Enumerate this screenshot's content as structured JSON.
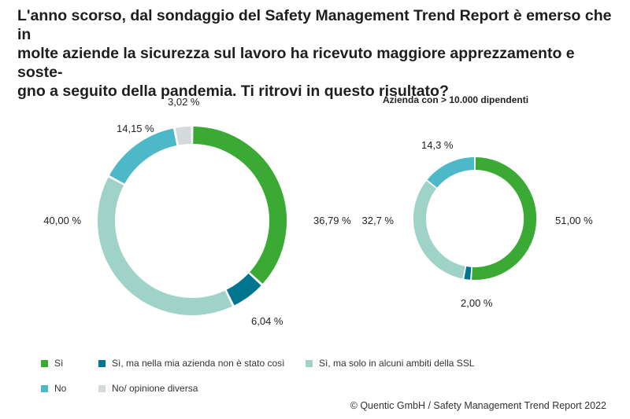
{
  "title": "L'anno scorso, dal sondaggio del Safety Management Trend Report è emerso che in molte aziende la sicurezza sul lavoro ha ricevuto maggiore apprezzamento e soste-gno a seguito della pandemia. Ti ritrovi in questo risultato?",
  "title_lines": [
    "L'anno scorso, dal sondaggio del Safety Management Trend Report è emerso che in",
    "molte aziende la sicurezza sul lavoro ha ricevuto maggiore apprezzamento e soste-",
    "gno a seguito della pandemia. Ti ritrovi in questo risultato?"
  ],
  "colors": {
    "si": "#3aaa35",
    "si_ma_non": "#00758f",
    "si_alcuni": "#9fd3c7",
    "no": "#4db8c8",
    "no_opinione": "#d4d9dc"
  },
  "chart_data": [
    {
      "type": "pie",
      "subtype": "donut",
      "title": "",
      "categories": [
        "Sì",
        "Sì, ma nella mia azienda non è stato così",
        "Sì, ma solo in alcuni ambiti della SSL",
        "No",
        "No/ opinione diversa"
      ],
      "values": [
        36.79,
        6.04,
        40.0,
        14.15,
        3.02
      ],
      "labels": [
        "36,79 %",
        "6,04 %",
        "40,00 %",
        "14,15 %",
        "3,02 %"
      ]
    },
    {
      "type": "pie",
      "subtype": "donut",
      "title": "Azienda con > 10.000 dipendenti",
      "categories": [
        "Sì",
        "Sì, ma nella mia azienda non è stato così",
        "Sì, ma solo in alcuni ambiti della SSL",
        "No"
      ],
      "values": [
        51.0,
        2.0,
        32.7,
        14.3
      ],
      "labels": [
        "51,00 %",
        "2,00 %",
        "32,7 %",
        "14,3 %"
      ]
    }
  ],
  "legend": [
    {
      "label": "Sì",
      "color": "#3aaa35"
    },
    {
      "label": "Sì, ma nella mia azienda non è stato così",
      "color": "#00758f"
    },
    {
      "label": "Sì, ma solo in alcuni ambiti della SSL",
      "color": "#9fd3c7"
    },
    {
      "label": "No",
      "color": "#4db8c8"
    },
    {
      "label": "No/ opinione diversa",
      "color": "#d4d9dc"
    }
  ],
  "credit": "© Quentic GmbH / Safety Management Trend Report 2022"
}
